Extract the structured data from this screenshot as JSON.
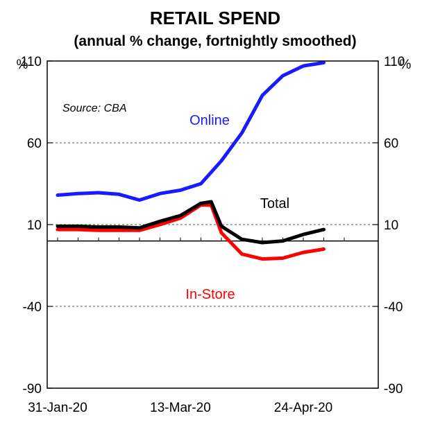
{
  "chart_data": {
    "type": "line",
    "title": "RETAIL SPEND",
    "subtitle": "(annual % change, fortnightly smoothed)",
    "source": "Source: CBA",
    "y_unit_left": "%",
    "y_unit_right": "%",
    "ylim": [
      -90,
      110
    ],
    "yticks": [
      110,
      60,
      10,
      -40,
      -90
    ],
    "ytick_labels": [
      "110",
      "60",
      "10",
      "-40",
      "-90"
    ],
    "gridlines": [
      110,
      60,
      10,
      -40
    ],
    "zero_line": 0,
    "x_tick_labels": [
      {
        "index": 0,
        "label": "31-Jan-20"
      },
      {
        "index": 6,
        "label": "13-Mar-20"
      },
      {
        "index": 12,
        "label": "24-Apr-20"
      }
    ],
    "x_count": 18,
    "series": [
      {
        "name": "Online",
        "color": "#1a1aff",
        "label_color": "#1a1aff",
        "x": [
          0,
          1,
          2,
          3,
          4,
          5,
          6,
          7,
          8,
          9,
          10,
          11,
          12,
          13
        ],
        "values": [
          28,
          29,
          29.5,
          28.5,
          25,
          29,
          31,
          35,
          49,
          66,
          89,
          101,
          107,
          109
        ]
      },
      {
        "name": "Total",
        "color": "#000000",
        "label_color": "#000000",
        "x": [
          0,
          1,
          2,
          3,
          4,
          5,
          6,
          7,
          7.5,
          8,
          9,
          10,
          11,
          12,
          13
        ],
        "values": [
          9,
          9,
          8.5,
          8.5,
          8,
          12,
          15.5,
          23,
          24,
          9,
          1,
          -1,
          0,
          4,
          7
        ]
      },
      {
        "name": "In-Store",
        "color": "#ff0000",
        "label_color": "#ff0000",
        "x": [
          0,
          1,
          2,
          3,
          4,
          5,
          6,
          7,
          7.5,
          8,
          9,
          10,
          11,
          12,
          13
        ],
        "values": [
          7,
          7,
          6.5,
          6.5,
          6.5,
          10,
          14,
          22,
          22,
          5,
          -8,
          -11,
          -10.5,
          -7,
          -5
        ]
      }
    ]
  }
}
